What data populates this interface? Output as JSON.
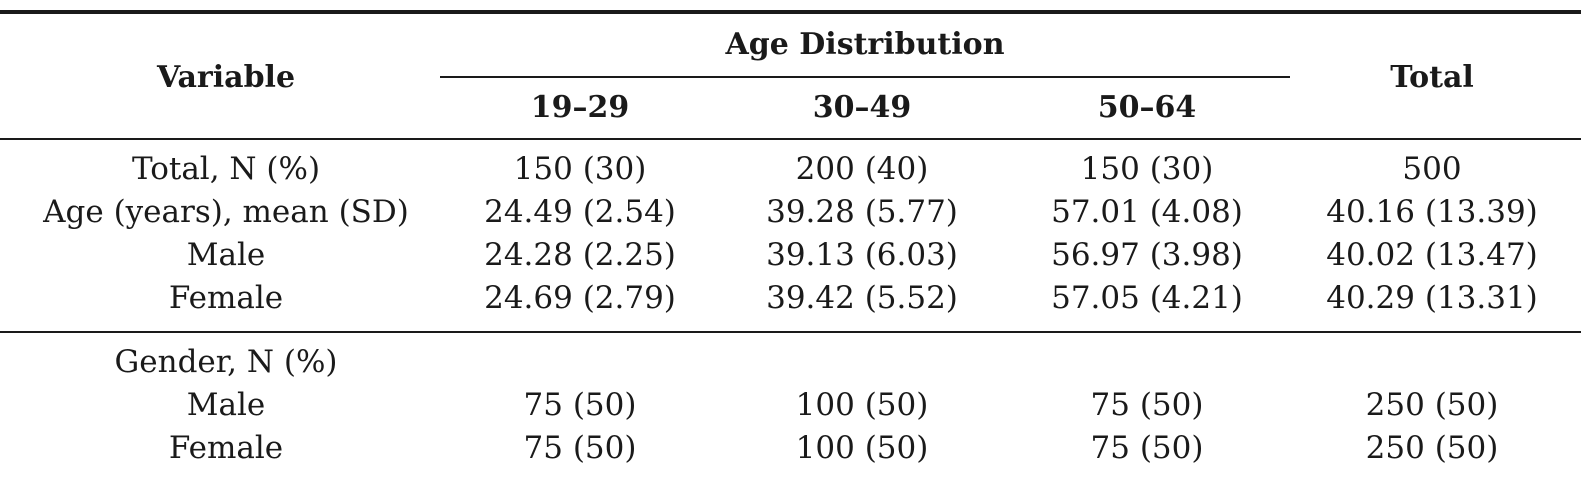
{
  "table": {
    "headers": {
      "variable": "Variable",
      "group": "Age Distribution",
      "total": "Total",
      "age_groups": [
        "19–29",
        "30–49",
        "50–64"
      ]
    },
    "section1": [
      {
        "label": "Total, N (%)",
        "values": [
          "150 (30)",
          "200 (40)",
          "150 (30)",
          "500"
        ]
      },
      {
        "label": "Age (years), mean (SD)",
        "values": [
          "24.49 (2.54)",
          "39.28 (5.77)",
          "57.01 (4.08)",
          "40.16 (13.39)"
        ]
      },
      {
        "label": "Male",
        "values": [
          "24.28 (2.25)",
          "39.13 (6.03)",
          "56.97 (3.98)",
          "40.02 (13.47)"
        ]
      },
      {
        "label": "Female",
        "values": [
          "24.69 (2.79)",
          "39.42 (5.52)",
          "57.05 (4.21)",
          "40.29 (13.31)"
        ]
      }
    ],
    "section2": [
      {
        "label": "Gender, N (%)",
        "values": [
          "",
          "",
          "",
          ""
        ]
      },
      {
        "label": "Male",
        "values": [
          "75 (50)",
          "100 (50)",
          "75 (50)",
          "250 (50)"
        ]
      },
      {
        "label": "Female",
        "values": [
          "75 (50)",
          "100 (50)",
          "75 (50)",
          "250 (50)"
        ]
      }
    ]
  }
}
